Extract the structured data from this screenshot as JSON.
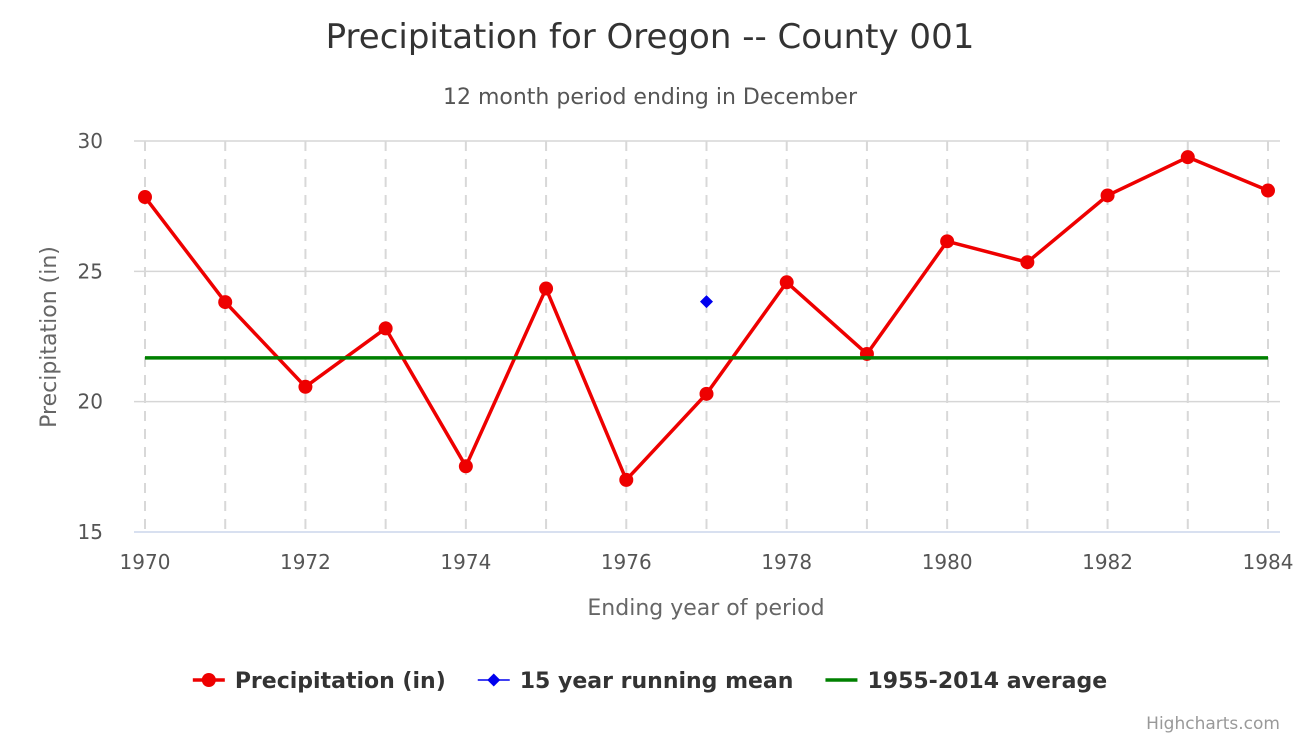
{
  "chart_data": {
    "type": "line",
    "title": "Precipitation for Oregon -- County 001",
    "subtitle": "12 month period ending in December",
    "xlabel": "Ending year of period",
    "ylabel": "Precipitation (in)",
    "xlim": [
      1970,
      1984
    ],
    "ylim": [
      15,
      30
    ],
    "x_ticks": [
      1970,
      1972,
      1974,
      1976,
      1978,
      1980,
      1982,
      1984
    ],
    "y_ticks": [
      15,
      20,
      25,
      30
    ],
    "grid": true,
    "legend_position": "bottom-center",
    "series": [
      {
        "name": "Precipitation (in)",
        "kind": "line-markers",
        "color": "#ee0000",
        "x": [
          1970,
          1971,
          1972,
          1973,
          1974,
          1975,
          1976,
          1977,
          1978,
          1979,
          1980,
          1981,
          1982,
          1983,
          1984
        ],
        "values": [
          27.85,
          23.82,
          20.57,
          22.81,
          17.52,
          24.34,
          17.0,
          20.3,
          24.58,
          21.83,
          26.15,
          25.35,
          27.91,
          29.38,
          28.1
        ]
      },
      {
        "name": "15 year running mean",
        "kind": "markers-diamond",
        "color": "#0000ee",
        "x": [
          1977
        ],
        "values": [
          23.84
        ]
      },
      {
        "name": "1955-2014 average",
        "kind": "line",
        "color": "#008000",
        "x": [
          1970,
          1984
        ],
        "values": [
          21.68,
          21.68
        ]
      }
    ]
  },
  "credits": "Highcharts.com"
}
